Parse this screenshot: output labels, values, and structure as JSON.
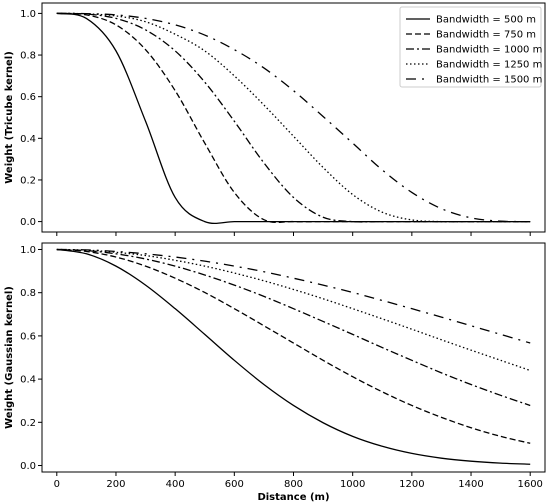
{
  "chart_data": [
    {
      "type": "line",
      "title": "",
      "xlabel": "",
      "ylabel": "Weight (Tricube kernel)",
      "xlim": [
        -50,
        1650
      ],
      "ylim": [
        -0.05,
        1.05
      ],
      "xticks": [
        0,
        200,
        400,
        600,
        800,
        1000,
        1200,
        1400,
        1600
      ],
      "xticks_labeled": false,
      "yticks": [
        "0.0",
        "0.2",
        "0.4",
        "0.6",
        "0.8",
        "1.0"
      ],
      "grid": false,
      "legend": {
        "placement": "top-right",
        "entries": [
          {
            "label": "Bandwidth = 500 m",
            "style": "solid"
          },
          {
            "label": "Bandwidth = 750 m",
            "style": "dashed"
          },
          {
            "label": "Bandwidth = 1000 m",
            "style": "dashdot"
          },
          {
            "label": "Bandwidth = 1250 m",
            "style": "dotted"
          },
          {
            "label": "Bandwidth = 1500 m",
            "style": "loosedashdot"
          }
        ]
      },
      "x": [
        0,
        100,
        200,
        300,
        400,
        500,
        600,
        700,
        800,
        900,
        1000,
        1100,
        1200,
        1300,
        1400,
        1500,
        1600
      ],
      "series": [
        {
          "name": "Bandwidth = 500 m",
          "style": "solid",
          "color": "#000000",
          "values": [
            1.0,
            0.976,
            0.82,
            0.482,
            0.116,
            0.0,
            0.0,
            0.0,
            0.0,
            0.0,
            0.0,
            0.0,
            0.0,
            0.0,
            0.0,
            0.0,
            0.0
          ]
        },
        {
          "name": "Bandwidth = 750 m",
          "style": "dashed",
          "color": "#000000",
          "values": [
            1.0,
            0.993,
            0.945,
            0.826,
            0.629,
            0.377,
            0.14,
            0.009,
            0.0,
            0.0,
            0.0,
            0.0,
            0.0,
            0.0,
            0.0,
            0.0,
            0.0
          ]
        },
        {
          "name": "Bandwidth = 1000 m",
          "style": "dashdot",
          "color": "#000000",
          "values": [
            1.0,
            0.997,
            0.976,
            0.921,
            0.82,
            0.67,
            0.482,
            0.282,
            0.116,
            0.021,
            0.0,
            0.0,
            0.0,
            0.0,
            0.0,
            0.0,
            0.0
          ]
        },
        {
          "name": "Bandwidth = 1250 m",
          "style": "dotted",
          "color": "#000000",
          "values": [
            1.0,
            0.998,
            0.988,
            0.96,
            0.9,
            0.82,
            0.7,
            0.56,
            0.41,
            0.26,
            0.13,
            0.045,
            0.008,
            0.0,
            0.0,
            0.0,
            0.0
          ]
        },
        {
          "name": "Bandwidth = 1500 m",
          "style": "loosedashdot",
          "color": "#000000",
          "values": [
            1.0,
            0.999,
            0.993,
            0.976,
            0.945,
            0.896,
            0.826,
            0.738,
            0.629,
            0.505,
            0.377,
            0.248,
            0.14,
            0.062,
            0.018,
            0.002,
            0.0
          ]
        }
      ]
    },
    {
      "type": "line",
      "title": "",
      "xlabel": "Distance (m)",
      "ylabel": "Weight (Gaussian kernel)",
      "xlim": [
        -50,
        1650
      ],
      "ylim": [
        -0.03,
        1.03
      ],
      "xticks": [
        "0",
        "200",
        "400",
        "600",
        "800",
        "1000",
        "1200",
        "1400",
        "1600"
      ],
      "yticks": [
        "0.0",
        "0.2",
        "0.4",
        "0.6",
        "0.8",
        "1.0"
      ],
      "grid": false,
      "x": [
        0,
        100,
        200,
        300,
        400,
        500,
        600,
        700,
        800,
        900,
        1000,
        1100,
        1200,
        1300,
        1400,
        1500,
        1600
      ],
      "series": [
        {
          "name": "Bandwidth = 500 m",
          "style": "solid",
          "color": "#000000",
          "values": [
            1.0,
            0.98,
            0.923,
            0.835,
            0.726,
            0.607,
            0.487,
            0.375,
            0.278,
            0.198,
            0.135,
            0.089,
            0.056,
            0.034,
            0.02,
            0.011,
            0.006
          ]
        },
        {
          "name": "Bandwidth = 750 m",
          "style": "dashed",
          "color": "#000000",
          "values": [
            1.0,
            0.991,
            0.965,
            0.923,
            0.867,
            0.801,
            0.726,
            0.647,
            0.567,
            0.487,
            0.411,
            0.341,
            0.278,
            0.223,
            0.175,
            0.135,
            0.103
          ]
        },
        {
          "name": "Bandwidth = 1000 m",
          "style": "dashdot",
          "color": "#000000",
          "values": [
            1.0,
            0.995,
            0.98,
            0.956,
            0.923,
            0.882,
            0.835,
            0.783,
            0.726,
            0.667,
            0.607,
            0.546,
            0.487,
            0.429,
            0.375,
            0.325,
            0.278
          ]
        },
        {
          "name": "Bandwidth = 1250 m",
          "style": "dotted",
          "color": "#000000",
          "values": [
            1.0,
            0.997,
            0.987,
            0.972,
            0.95,
            0.923,
            0.891,
            0.855,
            0.815,
            0.772,
            0.726,
            0.679,
            0.631,
            0.582,
            0.534,
            0.487,
            0.44
          ]
        },
        {
          "name": "Bandwidth = 1500 m",
          "style": "loosedashdot",
          "color": "#000000",
          "values": [
            1.0,
            0.998,
            0.991,
            0.98,
            0.965,
            0.946,
            0.923,
            0.897,
            0.867,
            0.835,
            0.801,
            0.764,
            0.726,
            0.687,
            0.647,
            0.607,
            0.567
          ]
        }
      ]
    }
  ]
}
